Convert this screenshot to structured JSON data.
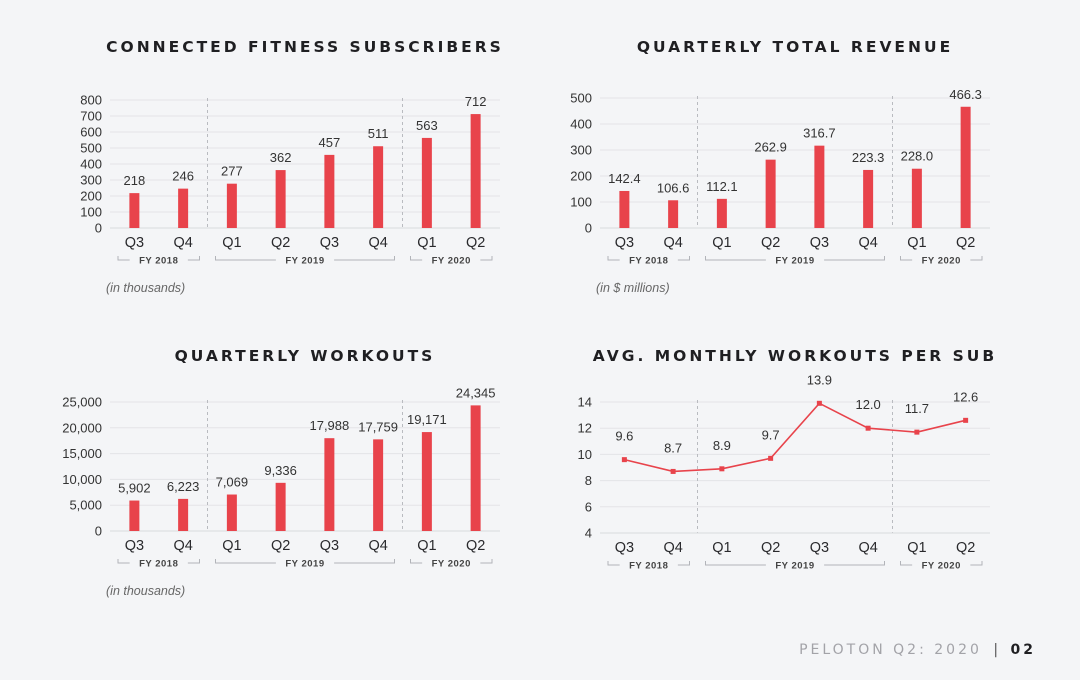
{
  "charts": [
    {
      "title": "CONNECTED FITNESS SUBSCRIBERS",
      "note": "(in thousands)"
    },
    {
      "title": "QUARTERLY TOTAL REVENUE",
      "note": "(in $ millions)"
    },
    {
      "title": "QUARTERLY WORKOUTS",
      "note": "(in thousands)"
    },
    {
      "title": "AVG. MONTHLY WORKOUTS PER SUB",
      "note": ""
    }
  ],
  "chart_data": [
    {
      "type": "bar",
      "title": "CONNECTED FITNESS SUBSCRIBERS",
      "categories": [
        "Q3",
        "Q4",
        "Q1",
        "Q2",
        "Q3",
        "Q4",
        "Q1",
        "Q2"
      ],
      "values": [
        218,
        246,
        277,
        362,
        457,
        511,
        563,
        712
      ],
      "value_labels": [
        "218",
        "246",
        "277",
        "362",
        "457",
        "511",
        "563",
        "712"
      ],
      "ylim": [
        0,
        800
      ],
      "yticks": [
        0,
        100,
        200,
        300,
        400,
        500,
        600,
        700,
        800
      ],
      "ytick_labels": [
        "0",
        "100",
        "200",
        "300",
        "400",
        "500",
        "600",
        "700",
        "800"
      ],
      "groups": [
        {
          "label": "FY 2018",
          "start": 0,
          "end": 1
        },
        {
          "label": "FY 2019",
          "start": 2,
          "end": 5
        },
        {
          "label": "FY 2020",
          "start": 6,
          "end": 7
        }
      ],
      "ylabel": "",
      "xlabel": "",
      "note": "(in thousands)",
      "color": "#e8434b"
    },
    {
      "type": "bar",
      "title": "QUARTERLY TOTAL REVENUE",
      "categories": [
        "Q3",
        "Q4",
        "Q1",
        "Q2",
        "Q3",
        "Q4",
        "Q1",
        "Q2"
      ],
      "values": [
        142.4,
        106.6,
        112.1,
        262.9,
        316.7,
        223.3,
        228.0,
        466.3
      ],
      "value_labels": [
        "142.4",
        "106.6",
        "112.1",
        "262.9",
        "316.7",
        "223.3",
        "228.0",
        "466.3"
      ],
      "ylim": [
        0,
        500
      ],
      "yticks": [
        0,
        100,
        200,
        300,
        400,
        500
      ],
      "ytick_labels": [
        "0",
        "100",
        "200",
        "300",
        "400",
        "500"
      ],
      "groups": [
        {
          "label": "FY 2018",
          "start": 0,
          "end": 1
        },
        {
          "label": "FY 2019",
          "start": 2,
          "end": 5
        },
        {
          "label": "FY 2020",
          "start": 6,
          "end": 7
        }
      ],
      "ylabel": "",
      "xlabel": "",
      "note": "(in $ millions)",
      "color": "#e8434b"
    },
    {
      "type": "bar",
      "title": "QUARTERLY WORKOUTS",
      "categories": [
        "Q3",
        "Q4",
        "Q1",
        "Q2",
        "Q3",
        "Q4",
        "Q1",
        "Q2"
      ],
      "values": [
        5902,
        6223,
        7069,
        9336,
        17988,
        17759,
        19171,
        24345
      ],
      "value_labels": [
        "5,902",
        "6,223",
        "7,069",
        "9,336",
        "17,988",
        "17,759",
        "19,171",
        "24,345"
      ],
      "ylim": [
        0,
        25000
      ],
      "yticks": [
        0,
        5000,
        10000,
        15000,
        20000,
        25000
      ],
      "ytick_labels": [
        "0",
        "5,000",
        "10,000",
        "15,000",
        "20,000",
        "25,000"
      ],
      "groups": [
        {
          "label": "FY 2018",
          "start": 0,
          "end": 1
        },
        {
          "label": "FY 2019",
          "start": 2,
          "end": 5
        },
        {
          "label": "FY 2020",
          "start": 6,
          "end": 7
        }
      ],
      "ylabel": "",
      "xlabel": "",
      "note": "(in thousands)",
      "color": "#e8434b"
    },
    {
      "type": "line",
      "title": "AVG. MONTHLY WORKOUTS PER SUB",
      "categories": [
        "Q3",
        "Q4",
        "Q1",
        "Q2",
        "Q3",
        "Q4",
        "Q1",
        "Q2"
      ],
      "values": [
        9.6,
        8.7,
        8.9,
        9.7,
        13.9,
        12.0,
        11.7,
        12.6
      ],
      "value_labels": [
        "9.6",
        "8.7",
        "8.9",
        "9.7",
        "13.9",
        "12.0",
        "11.7",
        "12.6"
      ],
      "ylim": [
        4,
        14
      ],
      "yticks": [
        4,
        6,
        8,
        10,
        12,
        14
      ],
      "ytick_labels": [
        "4",
        "6",
        "8",
        "10",
        "12",
        "14"
      ],
      "groups": [
        {
          "label": "FY 2018",
          "start": 0,
          "end": 1
        },
        {
          "label": "FY 2019",
          "start": 2,
          "end": 5
        },
        {
          "label": "FY 2020",
          "start": 6,
          "end": 7
        }
      ],
      "ylabel": "",
      "xlabel": "",
      "note": "",
      "color": "#e8434b"
    }
  ],
  "footer": {
    "brand": "PELOTON Q2: 2020",
    "separator": "|",
    "page": "02"
  }
}
